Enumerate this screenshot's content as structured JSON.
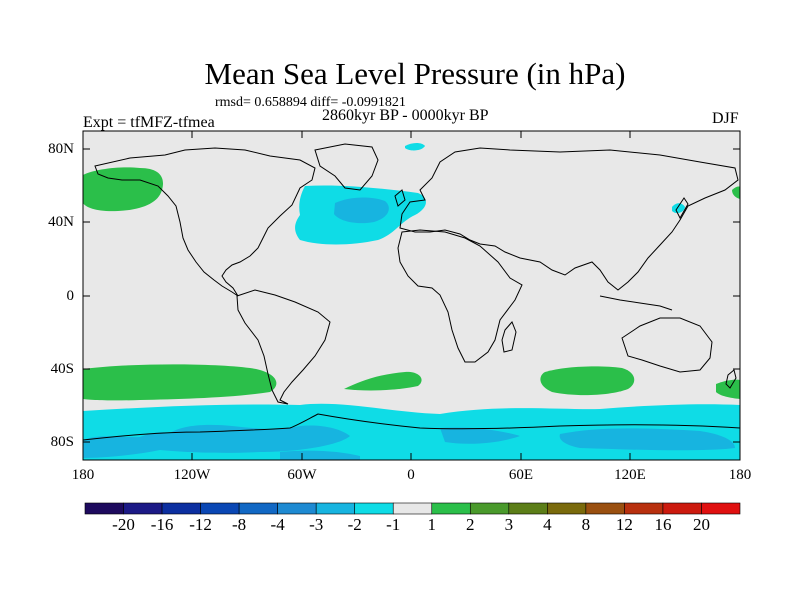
{
  "header": {
    "title": "Mean Sea Level Pressure (in hPa)",
    "stats": "rmsd= 0.658894 diff= -0.0991821",
    "period": "2860kyr BP - 0000kyr BP",
    "experiment": "Expt = tfMFZ-tfmea",
    "season": "DJF"
  },
  "map": {
    "projection": "cylindrical equidistant",
    "lon_range": [
      -180,
      180
    ],
    "lat_range": [
      -90,
      90
    ],
    "y_tick_labels": [
      "80N",
      "40N",
      "0",
      "40S",
      "80S"
    ],
    "x_tick_labels": [
      "180",
      "120W",
      "60W",
      "0",
      "60E",
      "120E",
      "180"
    ],
    "background_color": "#e8e8e8"
  },
  "colorbar": {
    "labels": [
      "-20",
      "-16",
      "-12",
      "-8",
      "-4",
      "-3",
      "-2",
      "-1",
      "1",
      "2",
      "3",
      "4",
      "8",
      "12",
      "16",
      "20"
    ],
    "colors": [
      "#1e0a5e",
      "#1c1a86",
      "#0c2fa0",
      "#0a47b4",
      "#1268c4",
      "#1e8ad2",
      "#17b4e0",
      "#0fdce6",
      "#e8e8e8",
      "#2bbf4a",
      "#4a9a2c",
      "#5c7e18",
      "#7a6a0c",
      "#9a5010",
      "#b8300e",
      "#cc1a0e",
      "#e01010"
    ]
  },
  "anomaly_regions": [
    {
      "name": "North Pacific high (+1 to +2)",
      "color": "#2bbf4a"
    },
    {
      "name": "North Atlantic low (-1 to -2)",
      "color": "#0fdce6"
    },
    {
      "name": "North Atlantic core (-2 to -3)",
      "color": "#17b4e0"
    },
    {
      "name": "Southern Ocean belt (-1 to -2)",
      "color": "#0fdce6"
    },
    {
      "name": "Antarctic lows (-2 to -3)",
      "color": "#17b4e0"
    },
    {
      "name": "Southern mid-latitude highs (+1 to +2)",
      "color": "#2bbf4a"
    }
  ]
}
